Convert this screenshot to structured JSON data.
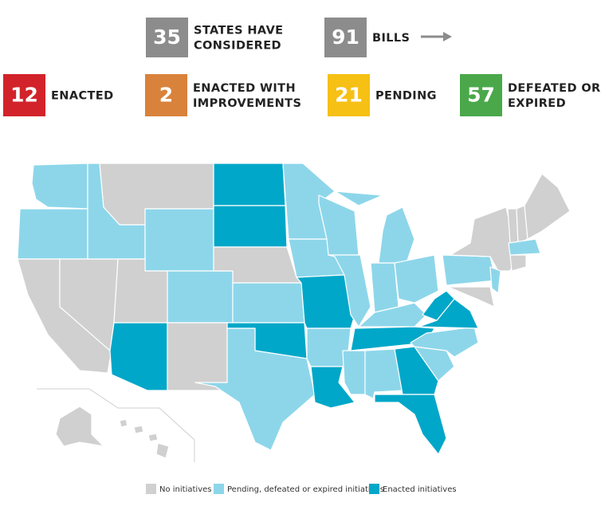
{
  "stats": [
    {
      "value": 35,
      "lines": [
        "STATES HAVE",
        "CONSIDERED"
      ],
      "color": "#8c8c8d"
    },
    {
      "value": 91,
      "lines": [
        "BILLS"
      ],
      "color": "#8c8c8d"
    },
    {
      "value": 12,
      "lines": [
        "ENACTED"
      ],
      "color": "#d2232a"
    },
    {
      "value": 2,
      "lines": [
        "ENACTED WITH",
        "IMPROVEMENTS"
      ],
      "color": "#d9823b"
    },
    {
      "value": 21,
      "lines": [
        "PENDING"
      ],
      "color": "#f6c014"
    },
    {
      "value": 57,
      "lines": [
        "DEFEATED OR",
        "EXPIRED"
      ],
      "color": "#4aa84a"
    }
  ],
  "legend": [
    {
      "label": "No initiatives",
      "color": "#d0d0d0"
    },
    {
      "label": "Pending, defeated or expired initiatives",
      "color": "#8dd6ea"
    },
    {
      "label": "Enacted initiatives",
      "color": "#00a7c8"
    }
  ]
}
